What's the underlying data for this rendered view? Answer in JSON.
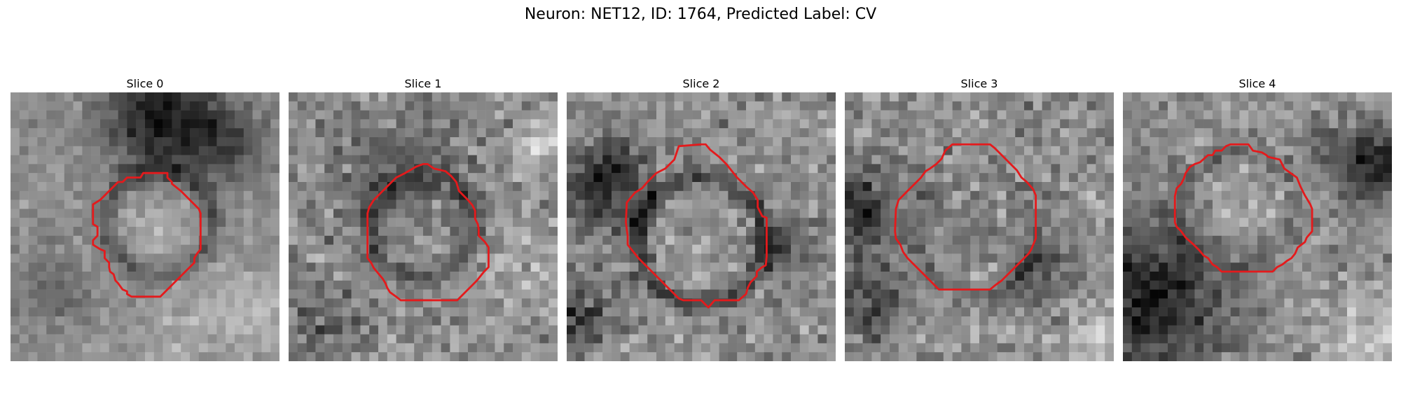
{
  "figure": {
    "title": "Neuron: NET12, ID: 1764, Predicted Label: CV"
  },
  "style": {
    "contour_color": "#e41a1c"
  },
  "panels": [
    {
      "title": "Slice 0"
    },
    {
      "title": "Slice 1"
    },
    {
      "title": "Slice 2"
    },
    {
      "title": "Slice 3"
    },
    {
      "title": "Slice 4"
    }
  ]
}
